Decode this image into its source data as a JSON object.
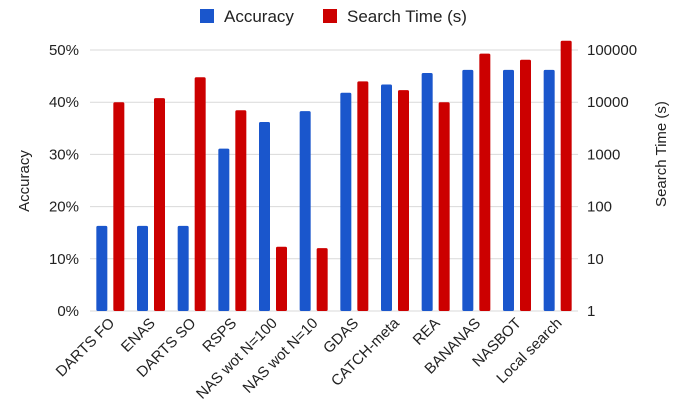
{
  "chart_data": {
    "type": "bar",
    "categories": [
      "DARTS FO",
      "ENAS",
      "DARTS SO",
      "RSPS",
      "NAS wot N=100",
      "NAS wot N=10",
      "GDAS",
      "CATCH-meta",
      "REA",
      "BANANAS",
      "NASBOT",
      "Local search"
    ],
    "series": [
      {
        "name": "Accuracy",
        "axis": "left",
        "color": "#1a56cc",
        "values": [
          16.3,
          16.3,
          16.3,
          31.1,
          36.2,
          38.3,
          41.8,
          43.4,
          45.6,
          46.2,
          46.2,
          46.2
        ]
      },
      {
        "name": "Search Time (s)",
        "axis": "right",
        "color": "#cc0000",
        "values": [
          10000,
          12000,
          30000,
          7000,
          17,
          16,
          25000,
          17000,
          10000,
          85000,
          65000,
          150000
        ]
      }
    ],
    "ylabel": "Accuracy",
    "y2label": "Search Time (s)",
    "ylim": [
      0,
      50
    ],
    "y2lim": [
      1,
      100000
    ],
    "y2scale": "log",
    "yticks": [
      "0%",
      "10%",
      "20%",
      "30%",
      "40%",
      "50%"
    ],
    "y2ticks": [
      "1",
      "10",
      "100",
      "1000",
      "10000",
      "100000"
    ],
    "grid": true,
    "legend_position": "top-center"
  }
}
